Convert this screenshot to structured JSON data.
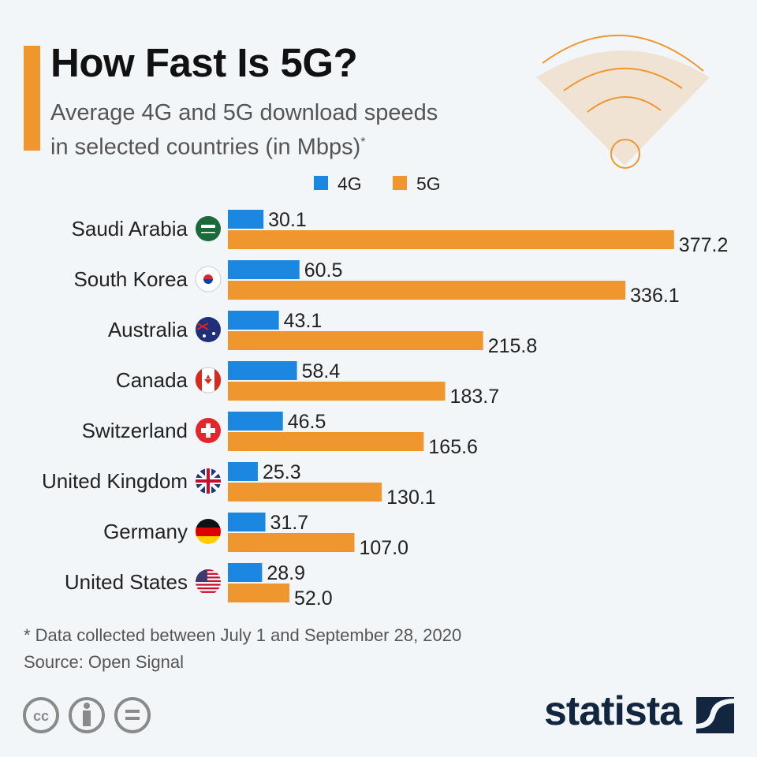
{
  "header": {
    "title": "How Fast Is 5G?",
    "subtitle_line1": "Average 4G and 5G download speeds",
    "subtitle_line2": "in selected countries (in Mbps)",
    "subtitle_mark": "*"
  },
  "footer": {
    "note": "* Data collected between July 1 and September 28, 2020",
    "source": "Source: Open Signal",
    "logo": "statista",
    "license_icons": [
      "cc-icon",
      "attribution-icon",
      "no-derivatives-icon"
    ]
  },
  "colors": {
    "4G": "#1b87e0",
    "5G": "#f0962e",
    "accent": "#f0962e",
    "background": "#f3f6f9"
  },
  "chart_data": {
    "type": "bar",
    "orientation": "horizontal",
    "title": "How Fast Is 5G?",
    "categories": [
      "Saudi Arabia",
      "South Korea",
      "Australia",
      "Canada",
      "Switzerland",
      "United Kingdom",
      "Germany",
      "United States"
    ],
    "series": [
      {
        "name": "4G",
        "values": [
          30.1,
          60.5,
          43.1,
          58.4,
          46.5,
          25.3,
          31.7,
          28.9
        ]
      },
      {
        "name": "5G",
        "values": [
          377.2,
          336.1,
          215.8,
          183.7,
          165.6,
          130.1,
          107.0,
          52.0
        ]
      }
    ],
    "value_labels_4G": [
      "30.1",
      "60.5",
      "43.1",
      "58.4",
      "46.5",
      "25.3",
      "31.7",
      "28.9"
    ],
    "value_labels_5G": [
      "377.2",
      "336.1",
      "215.8",
      "183.7",
      "165.6",
      "130.1",
      "107.0",
      "52.0"
    ],
    "legend": {
      "position": "top",
      "items": [
        "4G",
        "5G"
      ]
    },
    "grid": false,
    "xlim": [
      0,
      380
    ]
  }
}
